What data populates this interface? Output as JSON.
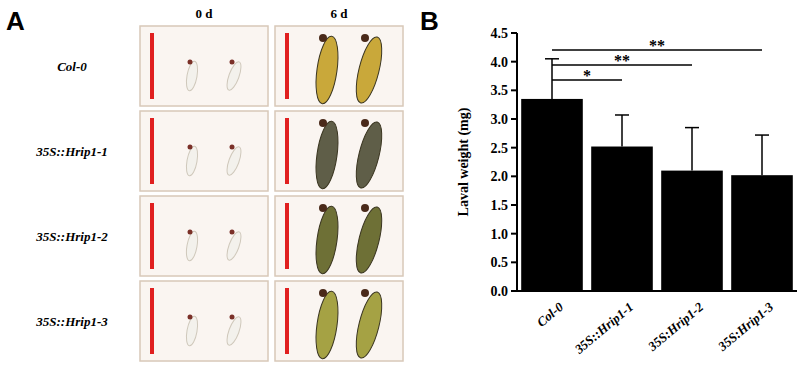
{
  "figure": {
    "panel_labels": [
      "A",
      "B"
    ],
    "photo_panel": {
      "columns": [
        "0 d",
        "6 d"
      ],
      "rows": [
        "Col-0",
        "35S::Hrip1-1",
        "35S::Hrip1-2",
        "35S::Hrip1-3"
      ]
    }
  },
  "chart_data": {
    "type": "bar",
    "y_label": "Laval weight (mg)",
    "categories": [
      "Col-0",
      "35S::Hrip1-1",
      "35S:Hrip1-2",
      "35S:Hrip1-3"
    ],
    "values": [
      3.35,
      2.52,
      2.1,
      2.02
    ],
    "errors": [
      0.7,
      0.55,
      0.75,
      0.7
    ],
    "color": "#000000",
    "ylim": [
      0,
      4.5
    ],
    "yticks": [
      {
        "value": 0,
        "label": "0.0"
      },
      0.5,
      {
        "value": 1,
        "label": "1.0"
      },
      1.5,
      {
        "value": 2,
        "label": "2.0"
      },
      2.5,
      {
        "value": 3,
        "label": "3.0"
      },
      3.5,
      {
        "value": 4,
        "label": "4.0"
      },
      4.5
    ],
    "grid": false,
    "annotations": [
      {
        "text": "*",
        "from": 0,
        "to": 1
      },
      {
        "text": "**",
        "from": 0,
        "to": 2
      },
      {
        "text": "**",
        "from": 0,
        "to": 3
      }
    ]
  }
}
